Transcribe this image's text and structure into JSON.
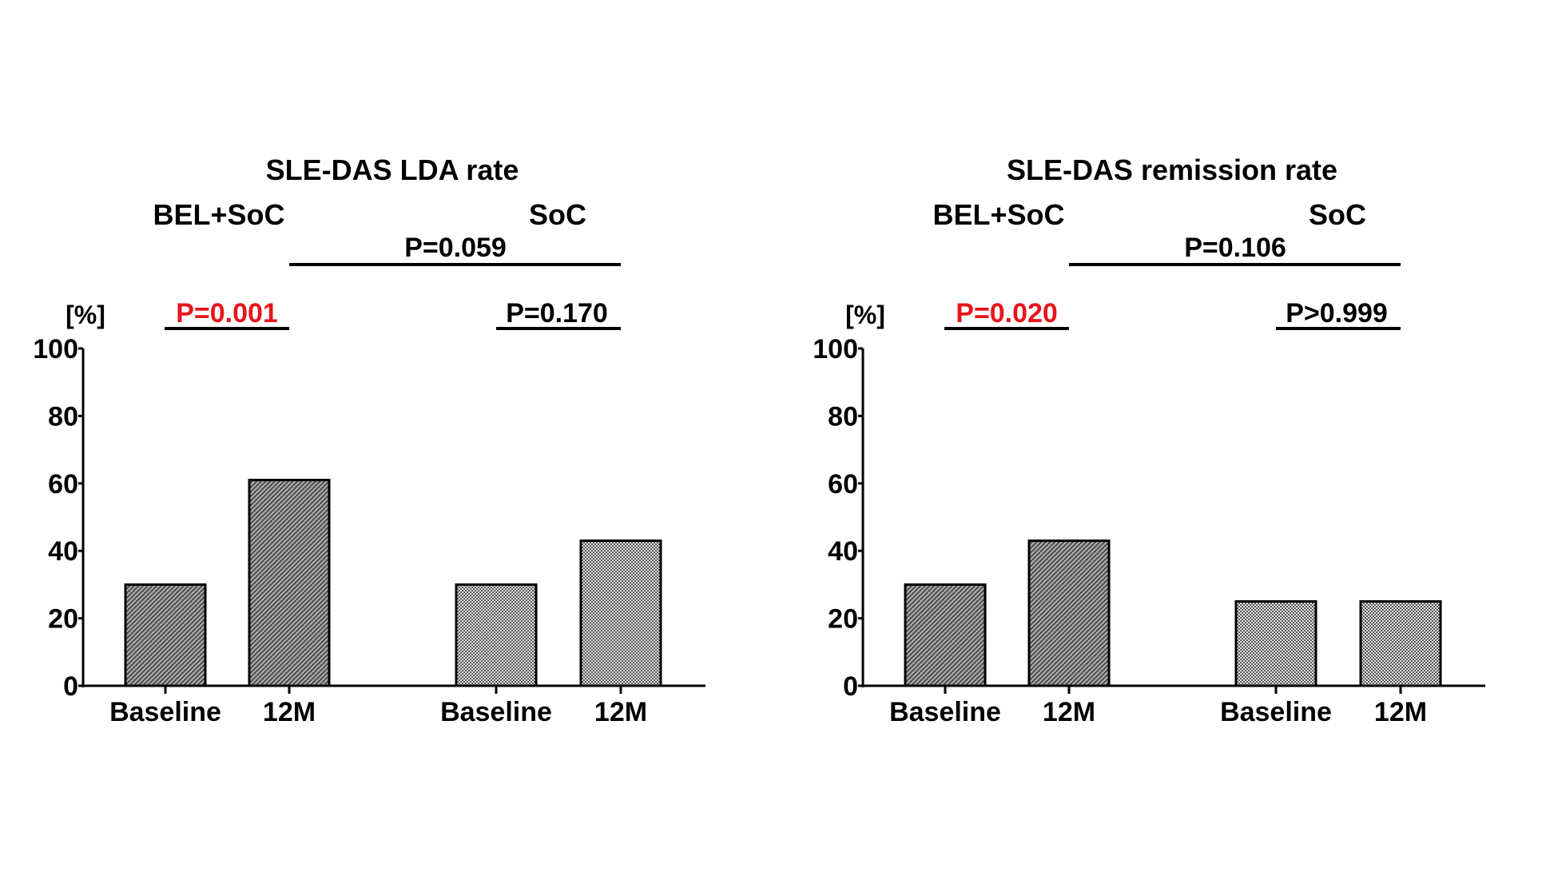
{
  "colors": {
    "bar_stroke": "#000000",
    "bel_fill_dark": "#4a4a4a",
    "bel_fill_light": "#b0b0b0",
    "soc_fill_dark": "#555555",
    "soc_fill_light": "#e6e6e6",
    "significant": "#e8141b",
    "text": "#000000"
  },
  "chart_data": [
    {
      "type": "bar",
      "title": "SLE-DAS LDA rate",
      "ylabel": "[%]",
      "ylim": [
        0,
        100
      ],
      "yticks": [
        "0",
        "20",
        "40",
        "60",
        "80",
        "100"
      ],
      "categories": [
        "Baseline",
        "12M",
        "Baseline",
        "12M"
      ],
      "groups": [
        {
          "name": "BEL+SoC",
          "pattern": "hatch",
          "bars": [
            {
              "label": "Baseline",
              "value": 30
            },
            {
              "label": "12M",
              "value": 61
            }
          ]
        },
        {
          "name": "SoC",
          "pattern": "checker",
          "bars": [
            {
              "label": "Baseline",
              "value": 30
            },
            {
              "label": "12M",
              "value": 43
            }
          ]
        }
      ],
      "p_values": {
        "between_groups": {
          "text": "P=0.059",
          "significant": false
        },
        "group1_within": {
          "text": "P=0.001",
          "significant": true
        },
        "group2_within": {
          "text": "P=0.170",
          "significant": false
        }
      },
      "grid": false,
      "legend": "none"
    },
    {
      "type": "bar",
      "title": "SLE-DAS remission rate",
      "ylabel": "[%]",
      "ylim": [
        0,
        100
      ],
      "yticks": [
        "0",
        "20",
        "40",
        "60",
        "80",
        "100"
      ],
      "categories": [
        "Baseline",
        "12M",
        "Baseline",
        "12M"
      ],
      "groups": [
        {
          "name": "BEL+SoC",
          "pattern": "hatch",
          "bars": [
            {
              "label": "Baseline",
              "value": 30
            },
            {
              "label": "12M",
              "value": 43
            }
          ]
        },
        {
          "name": "SoC",
          "pattern": "checker",
          "bars": [
            {
              "label": "Baseline",
              "value": 25
            },
            {
              "label": "12M",
              "value": 25
            }
          ]
        }
      ],
      "p_values": {
        "between_groups": {
          "text": "P=0.106",
          "significant": false
        },
        "group1_within": {
          "text": "P=0.020",
          "significant": true
        },
        "group2_within": {
          "text": "P>0.999",
          "significant": false
        }
      },
      "grid": false,
      "legend": "none"
    }
  ]
}
